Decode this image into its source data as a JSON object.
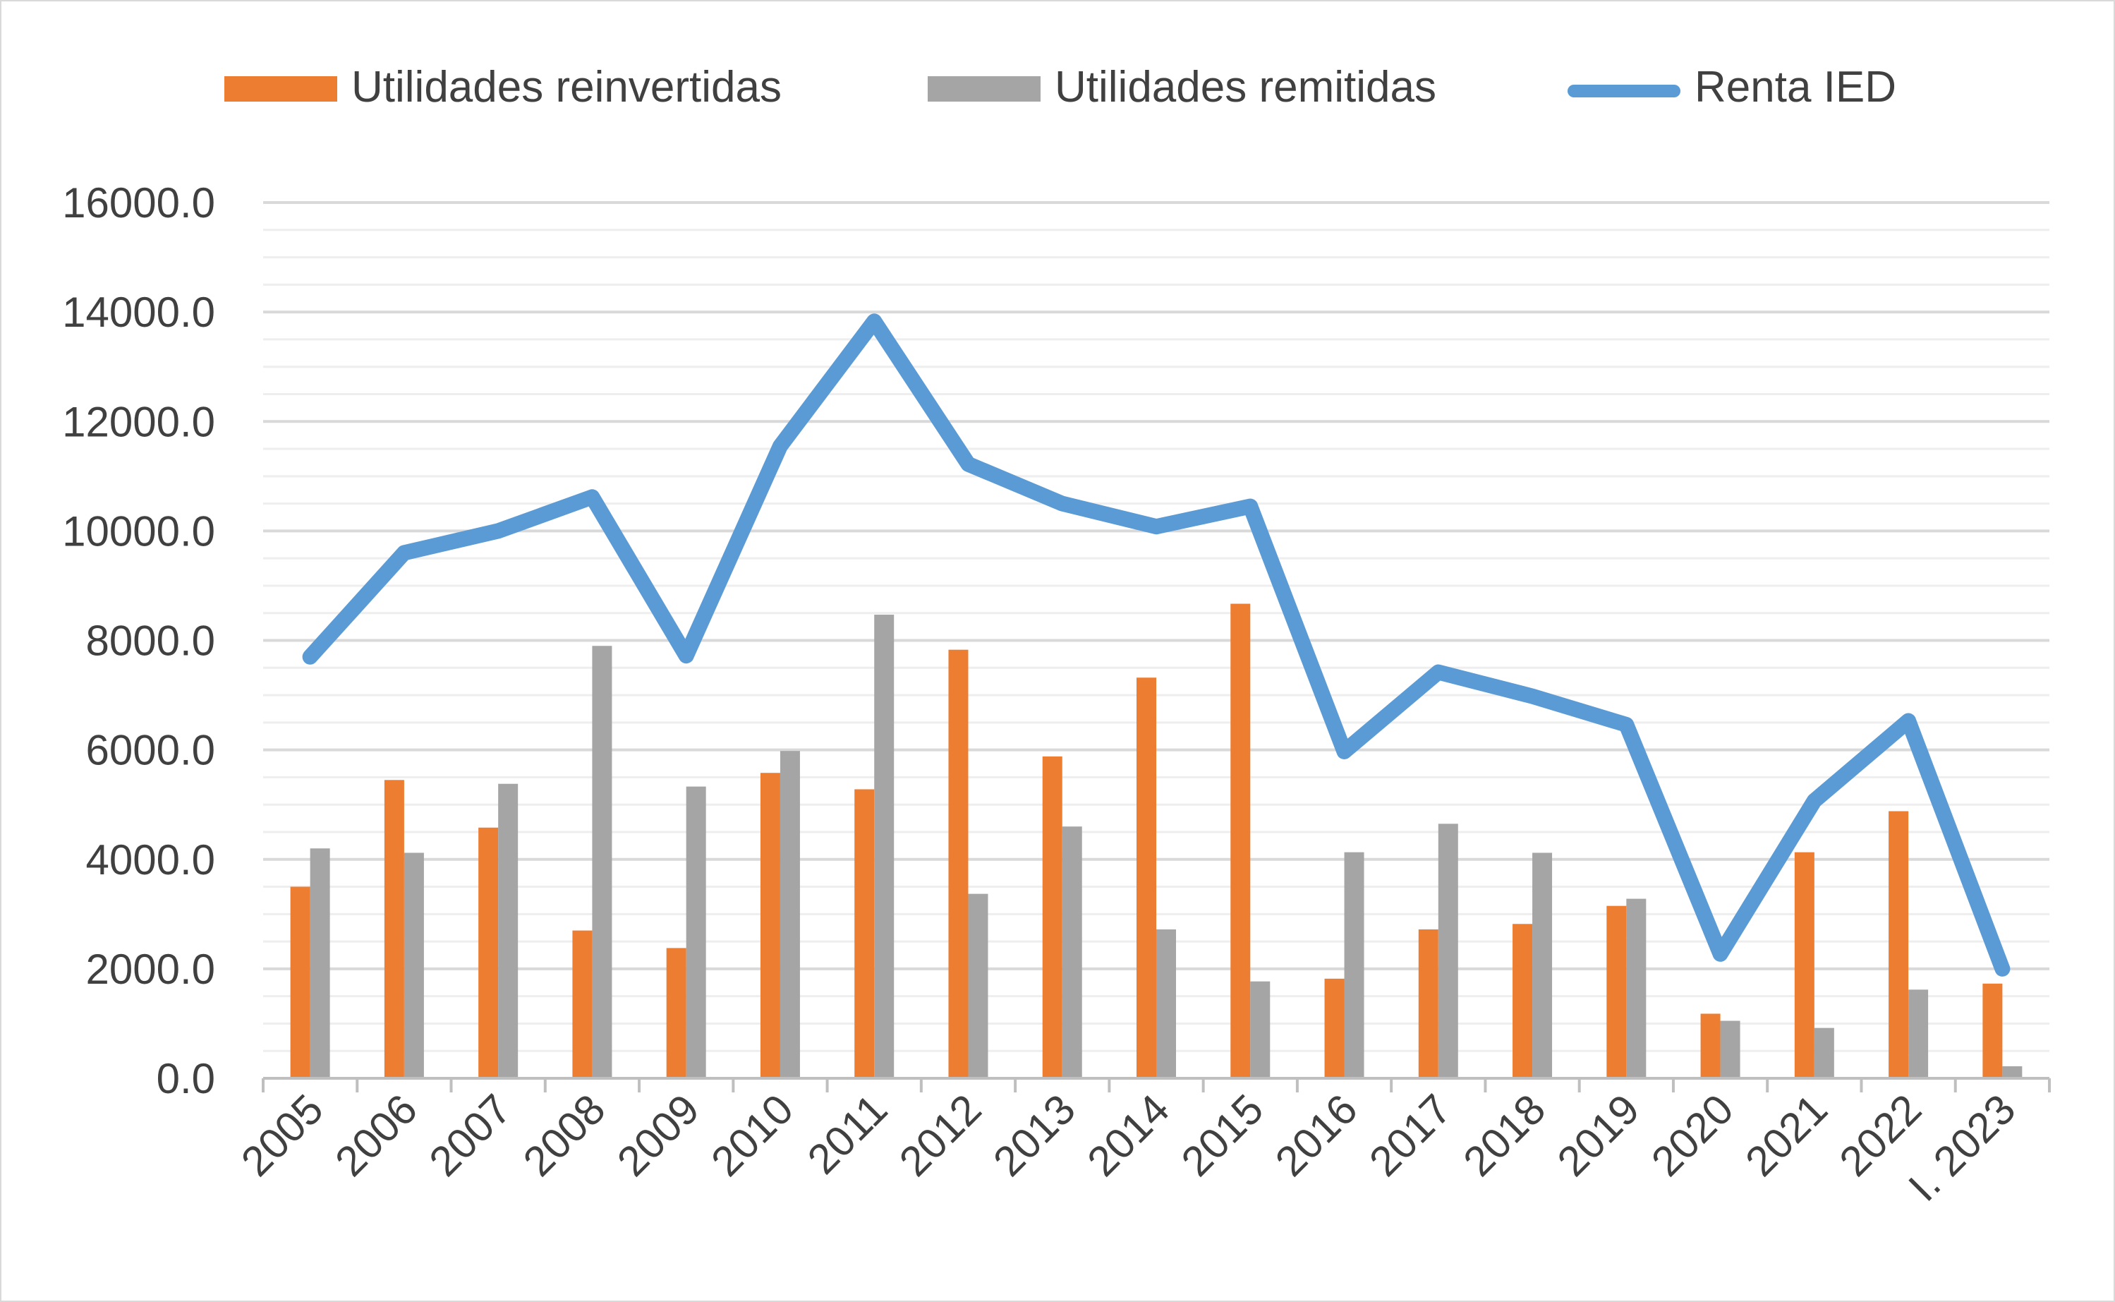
{
  "colors": {
    "reinvested": "#ED7D31",
    "remitted": "#A5A5A5",
    "renta": "#5B9BD5",
    "gridline": "#d9d9d9",
    "axis": "#bfbfbf",
    "text": "#404040"
  },
  "legend": {
    "reinvested": "Utilidades reinvertidas",
    "remitted": "Utilidades remitidas",
    "renta": "Renta IED"
  },
  "chart_data": {
    "type": "bar",
    "title": "",
    "xlabel": "",
    "ylabel": "",
    "legend_position": "top",
    "grid": true,
    "ylim": [
      0,
      16000
    ],
    "y_ticks": [
      "0.0",
      "2000.0",
      "4000.0",
      "6000.0",
      "8000.0",
      "10000.0",
      "12000.0",
      "14000.0",
      "16000.0"
    ],
    "categories": [
      "2005",
      "2006",
      "2007",
      "2008",
      "2009",
      "2010",
      "2011",
      "2012",
      "2013",
      "2014",
      "2015",
      "2016",
      "2017",
      "2018",
      "2019",
      "2020",
      "2021",
      "2022",
      "I. 2023"
    ],
    "series": [
      {
        "name": "Utilidades reinvertidas",
        "kind": "bar",
        "values": [
          3500,
          5450,
          4580,
          2700,
          2380,
          5580,
          5280,
          7830,
          5880,
          7320,
          8670,
          1820,
          2720,
          2820,
          3150,
          1180,
          4130,
          4880,
          1730
        ]
      },
      {
        "name": "Utilidades remitidas",
        "kind": "bar",
        "values": [
          4200,
          4120,
          5380,
          7900,
          5330,
          5980,
          8470,
          3370,
          4600,
          2720,
          1770,
          4130,
          4650,
          4120,
          3280,
          1050,
          920,
          1620,
          220
        ]
      },
      {
        "name": "Renta IED",
        "kind": "line",
        "values": [
          7700,
          9600,
          10000,
          10620,
          7720,
          11550,
          13830,
          11220,
          10500,
          10080,
          10450,
          5970,
          7420,
          6980,
          6460,
          2270,
          5070,
          6530,
          2000
        ]
      }
    ]
  }
}
